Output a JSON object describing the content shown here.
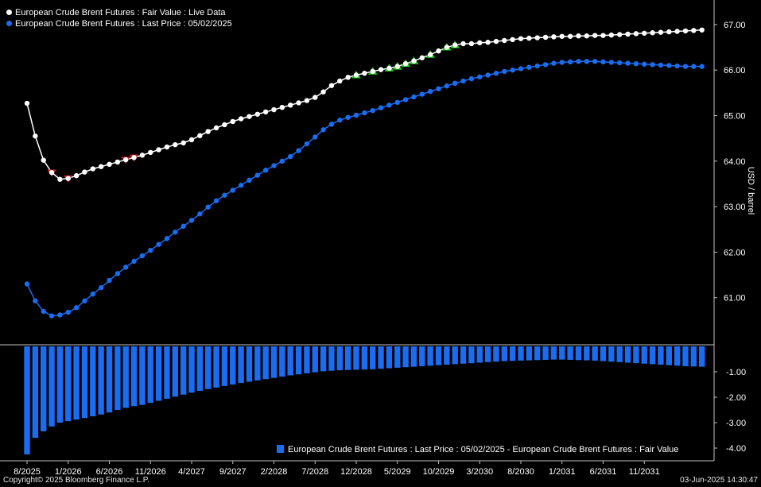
{
  "legend": {
    "series1": "European Crude Brent Futures : Fair Value : Live Data",
    "series2": "European Crude Brent Futures : Last Price : 05/02/2025",
    "diff": "European Crude Brent Futures : Last Price : 05/02/2025 - European Crude Brent Futures : Fair Value"
  },
  "footer": {
    "copyright": "Copyright© 2025 Bloomberg Finance L.P.",
    "timestamp": "03-Jun-2025 14:30:47"
  },
  "colors": {
    "fair_value": "#ffffff",
    "last_price": "#1a6cf0",
    "diff_bars": "#1a6cf0",
    "down_marker": "#e02020",
    "up_marker": "#22cc22",
    "background": "#000000"
  },
  "chart_data": [
    {
      "type": "line",
      "ylabel": "USD / barrel",
      "x_tick_labels": [
        "8/2025",
        "1/2026",
        "6/2026",
        "11/2026",
        "4/2027",
        "9/2027",
        "2/2028",
        "7/2028",
        "12/2028",
        "5/2029",
        "10/2029",
        "3/2030",
        "8/2030",
        "1/2031",
        "6/2031",
        "11/2031"
      ],
      "y_tick_labels": [
        "61.00",
        "62.00",
        "63.00",
        "64.00",
        "65.00",
        "66.00",
        "67.00"
      ],
      "ylim": [
        60.0,
        67.4
      ],
      "x_start": "8/2025",
      "x_end": "12/2031",
      "grid": false,
      "legend_position": "top-left",
      "series": [
        {
          "name": "European Crude Brent Futures : Fair Value : Live Data",
          "color": "#ffffff",
          "values": [
            65.27,
            64.55,
            64.02,
            63.75,
            63.6,
            63.62,
            63.68,
            63.76,
            63.83,
            63.88,
            63.93,
            63.98,
            64.03,
            64.08,
            64.13,
            64.19,
            64.25,
            64.31,
            64.36,
            64.4,
            64.47,
            64.56,
            64.65,
            64.73,
            64.8,
            64.87,
            64.93,
            64.98,
            65.03,
            65.08,
            65.13,
            65.18,
            65.23,
            65.28,
            65.33,
            65.4,
            65.52,
            65.66,
            65.76,
            65.84,
            65.89,
            65.93,
            65.97,
            66.01,
            66.04,
            66.08,
            66.14,
            66.2,
            66.27,
            66.34,
            66.42,
            66.5,
            66.55,
            66.58,
            66.58,
            66.6,
            66.61,
            66.63,
            66.65,
            66.67,
            66.69,
            66.7,
            66.71,
            66.72,
            66.73,
            66.74,
            66.74,
            66.75,
            66.75,
            66.76,
            66.76,
            66.77,
            66.78,
            66.79,
            66.8,
            66.81,
            66.82,
            66.83,
            66.84,
            66.85,
            66.86,
            66.87,
            66.88
          ]
        },
        {
          "name": "European Crude Brent Futures : Last Price : 05/02/2025",
          "color": "#1a6cf0",
          "values": [
            61.3,
            60.93,
            60.7,
            60.6,
            60.62,
            60.68,
            60.78,
            60.93,
            61.08,
            61.22,
            61.38,
            61.53,
            61.67,
            61.8,
            61.92,
            62.04,
            62.17,
            62.3,
            62.44,
            62.57,
            62.7,
            62.84,
            62.99,
            63.13,
            63.25,
            63.36,
            63.47,
            63.58,
            63.69,
            63.8,
            63.9,
            64.0,
            64.1,
            64.23,
            64.38,
            64.53,
            64.69,
            64.81,
            64.9,
            64.96,
            65.01,
            65.06,
            65.11,
            65.17,
            65.23,
            65.29,
            65.35,
            65.41,
            65.47,
            65.53,
            65.59,
            65.65,
            65.71,
            65.76,
            65.81,
            65.85,
            65.89,
            65.93,
            65.97,
            66.0,
            66.03,
            66.06,
            66.09,
            66.12,
            66.15,
            66.17,
            66.18,
            66.19,
            66.19,
            66.19,
            66.18,
            66.17,
            66.16,
            66.15,
            66.14,
            66.13,
            66.12,
            66.11,
            66.1,
            66.09,
            66.08,
            66.08,
            66.08
          ]
        }
      ],
      "markers": {
        "down_indices": [
          3,
          5,
          12,
          13
        ],
        "up_indices": [
          40,
          42,
          44,
          45,
          46,
          47,
          49,
          51,
          52
        ]
      }
    },
    {
      "type": "bar",
      "ylabel": "",
      "y_tick_labels": [
        "-1.00",
        "-2.00",
        "-3.00",
        "-4.00"
      ],
      "ylim": [
        -4.3,
        0
      ],
      "series": [
        {
          "name": "European Crude Brent Futures : Last Price : 05/02/2025 - European Crude Brent Futures : Fair Value",
          "values": [
            -4.25,
            -3.6,
            -3.34,
            -3.15,
            -3.0,
            -2.94,
            -2.88,
            -2.82,
            -2.75,
            -2.68,
            -2.6,
            -2.5,
            -2.42,
            -2.35,
            -2.3,
            -2.22,
            -2.14,
            -2.06,
            -1.98,
            -1.9,
            -1.82,
            -1.75,
            -1.68,
            -1.62,
            -1.56,
            -1.5,
            -1.44,
            -1.39,
            -1.34,
            -1.29,
            -1.24,
            -1.19,
            -1.14,
            -1.1,
            -1.06,
            -1.02,
            -0.98,
            -0.96,
            -0.94,
            -0.93,
            -0.92,
            -0.91,
            -0.9,
            -0.88,
            -0.86,
            -0.84,
            -0.82,
            -0.8,
            -0.78,
            -0.76,
            -0.74,
            -0.72,
            -0.7,
            -0.68,
            -0.66,
            -0.64,
            -0.62,
            -0.6,
            -0.58,
            -0.57,
            -0.56,
            -0.55,
            -0.54,
            -0.53,
            -0.52,
            -0.52,
            -0.53,
            -0.54,
            -0.55,
            -0.56,
            -0.58,
            -0.6,
            -0.62,
            -0.64,
            -0.66,
            -0.68,
            -0.7,
            -0.72,
            -0.74,
            -0.76,
            -0.78,
            -0.79,
            -0.8
          ]
        }
      ]
    }
  ]
}
